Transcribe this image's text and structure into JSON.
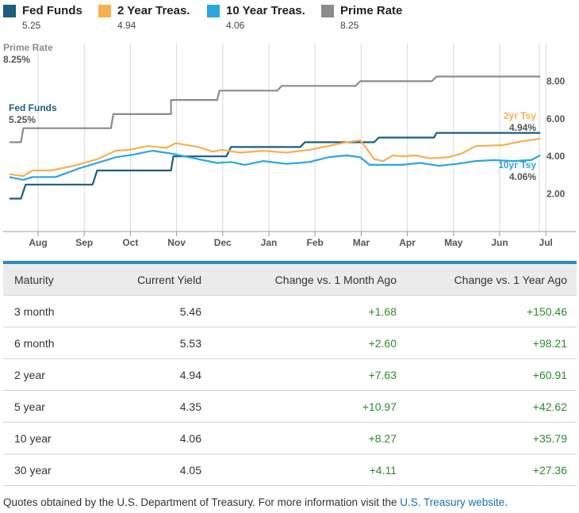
{
  "legend": [
    {
      "name": "Fed Funds",
      "value": "5.25",
      "color": "#1b5e7e"
    },
    {
      "name": "2 Year Treas.",
      "value": "4.94",
      "color": "#f7b04d"
    },
    {
      "name": "10 Year Treas.",
      "value": "4.06",
      "color": "#2aa6df"
    },
    {
      "name": "Prime Rate",
      "value": "8.25",
      "color": "#8c8c8c"
    }
  ],
  "chart_data": {
    "type": "line",
    "x_tick_labels": [
      "Aug",
      "Sep",
      "Oct",
      "Nov",
      "Dec",
      "Jan",
      "Feb",
      "Mar",
      "Apr",
      "May",
      "Jun",
      "Jul"
    ],
    "y_tick_labels": [
      "2.00",
      "4.00",
      "6.00",
      "8.00"
    ],
    "ylim": [
      0,
      9.5
    ],
    "grid": "vertical",
    "series": [
      {
        "name": "Prime Rate",
        "color": "#8c8c8c",
        "label": "Prime Rate",
        "label_value": "8.25%",
        "points": [
          [
            -0.5,
            4.75
          ],
          [
            -0.25,
            4.75
          ],
          [
            -0.2,
            5.5
          ],
          [
            0.75,
            5.5
          ],
          [
            1.7,
            5.5
          ],
          [
            1.75,
            6.25
          ],
          [
            2.75,
            6.25
          ],
          [
            3.0,
            6.25
          ],
          [
            3.0,
            7.0
          ],
          [
            3.75,
            7.0
          ],
          [
            4.0,
            7.0
          ],
          [
            4.05,
            7.5
          ],
          [
            5.0,
            7.5
          ],
          [
            5.3,
            7.5
          ],
          [
            5.4,
            7.75
          ],
          [
            6.4,
            7.75
          ],
          [
            7.0,
            7.75
          ],
          [
            7.1,
            8.0
          ],
          [
            8.3,
            8.0
          ],
          [
            8.65,
            8.0
          ],
          [
            8.75,
            8.25
          ],
          [
            10.2,
            8.25
          ],
          [
            11.0,
            8.25
          ]
        ]
      },
      {
        "name": "Fed Funds",
        "color": "#1b5e7e",
        "label": "Fed Funds",
        "label_value": "5.25%",
        "points": [
          [
            -0.5,
            1.75
          ],
          [
            -0.25,
            1.75
          ],
          [
            -0.15,
            2.5
          ],
          [
            0.75,
            2.5
          ],
          [
            1.3,
            2.5
          ],
          [
            1.4,
            3.25
          ],
          [
            2.75,
            3.25
          ],
          [
            3.0,
            3.25
          ],
          [
            3.05,
            4.0
          ],
          [
            3.75,
            4.0
          ],
          [
            4.2,
            4.0
          ],
          [
            4.3,
            4.5
          ],
          [
            5.5,
            4.5
          ],
          [
            5.8,
            4.5
          ],
          [
            5.9,
            4.75
          ],
          [
            7.0,
            4.75
          ],
          [
            7.4,
            4.75
          ],
          [
            7.5,
            5.0
          ],
          [
            8.7,
            5.0
          ],
          [
            8.75,
            5.25
          ],
          [
            10.0,
            5.25
          ],
          [
            11.0,
            5.25
          ]
        ]
      },
      {
        "name": "2 Year Treas.",
        "color": "#f7b04d",
        "label": "2yr Tsy",
        "label_value": "4.94%",
        "points": [
          [
            -0.5,
            3.05
          ],
          [
            -0.2,
            2.95
          ],
          [
            0.0,
            3.25
          ],
          [
            0.4,
            3.25
          ],
          [
            0.9,
            3.5
          ],
          [
            1.4,
            3.85
          ],
          [
            1.8,
            4.3
          ],
          [
            2.1,
            4.35
          ],
          [
            2.5,
            4.55
          ],
          [
            2.9,
            4.45
          ],
          [
            3.1,
            4.7
          ],
          [
            3.6,
            4.5
          ],
          [
            3.9,
            4.25
          ],
          [
            4.1,
            4.35
          ],
          [
            4.5,
            4.2
          ],
          [
            5.0,
            4.3
          ],
          [
            5.5,
            4.2
          ],
          [
            6.0,
            4.35
          ],
          [
            6.4,
            4.55
          ],
          [
            6.8,
            4.75
          ],
          [
            7.1,
            4.85
          ],
          [
            7.2,
            4.55
          ],
          [
            7.4,
            3.85
          ],
          [
            7.6,
            3.75
          ],
          [
            7.8,
            4.05
          ],
          [
            8.0,
            4.0
          ],
          [
            8.3,
            4.05
          ],
          [
            8.6,
            3.9
          ],
          [
            9.0,
            3.95
          ],
          [
            9.3,
            4.15
          ],
          [
            9.6,
            4.55
          ],
          [
            10.2,
            4.6
          ],
          [
            10.6,
            4.8
          ],
          [
            11.0,
            4.94
          ]
        ]
      },
      {
        "name": "10 Year Treas.",
        "color": "#2aa6df",
        "label": "10yr Tsy",
        "label_value": "4.06%",
        "points": [
          [
            -0.5,
            2.9
          ],
          [
            -0.2,
            2.75
          ],
          [
            0.0,
            2.9
          ],
          [
            0.5,
            2.9
          ],
          [
            1.0,
            3.35
          ],
          [
            1.4,
            3.65
          ],
          [
            1.8,
            3.95
          ],
          [
            2.2,
            4.1
          ],
          [
            2.6,
            4.3
          ],
          [
            3.0,
            4.15
          ],
          [
            3.3,
            4.0
          ],
          [
            3.6,
            3.85
          ],
          [
            4.0,
            3.65
          ],
          [
            4.3,
            3.7
          ],
          [
            4.6,
            3.55
          ],
          [
            5.0,
            3.75
          ],
          [
            5.5,
            3.6
          ],
          [
            6.0,
            3.7
          ],
          [
            6.4,
            3.95
          ],
          [
            6.8,
            4.05
          ],
          [
            7.1,
            3.95
          ],
          [
            7.3,
            3.55
          ],
          [
            7.6,
            3.55
          ],
          [
            8.0,
            3.55
          ],
          [
            8.4,
            3.65
          ],
          [
            8.8,
            3.5
          ],
          [
            9.2,
            3.6
          ],
          [
            9.6,
            3.75
          ],
          [
            10.0,
            3.8
          ],
          [
            10.4,
            3.75
          ],
          [
            10.8,
            3.8
          ],
          [
            11.0,
            4.06
          ]
        ]
      }
    ]
  },
  "table": {
    "headers": [
      "Maturity",
      "Current Yield",
      "Change vs. 1 Month Ago",
      "Change vs. 1 Year Ago"
    ],
    "rows": [
      [
        "3 month",
        "5.46",
        "+1.68",
        "+150.46"
      ],
      [
        "6 month",
        "5.53",
        "+2.60",
        "+98.21"
      ],
      [
        "2 year",
        "4.94",
        "+7.63",
        "+60.91"
      ],
      [
        "5 year",
        "4.35",
        "+10.97",
        "+42.62"
      ],
      [
        "10 year",
        "4.06",
        "+8.27",
        "+35.79"
      ],
      [
        "30 year",
        "4.05",
        "+4.11",
        "+27.36"
      ]
    ]
  },
  "footer": {
    "text": "Quotes obtained by the U.S. Department of Treasury. For more information visit the ",
    "link_text": "U.S. Treasury website",
    "end": "."
  }
}
